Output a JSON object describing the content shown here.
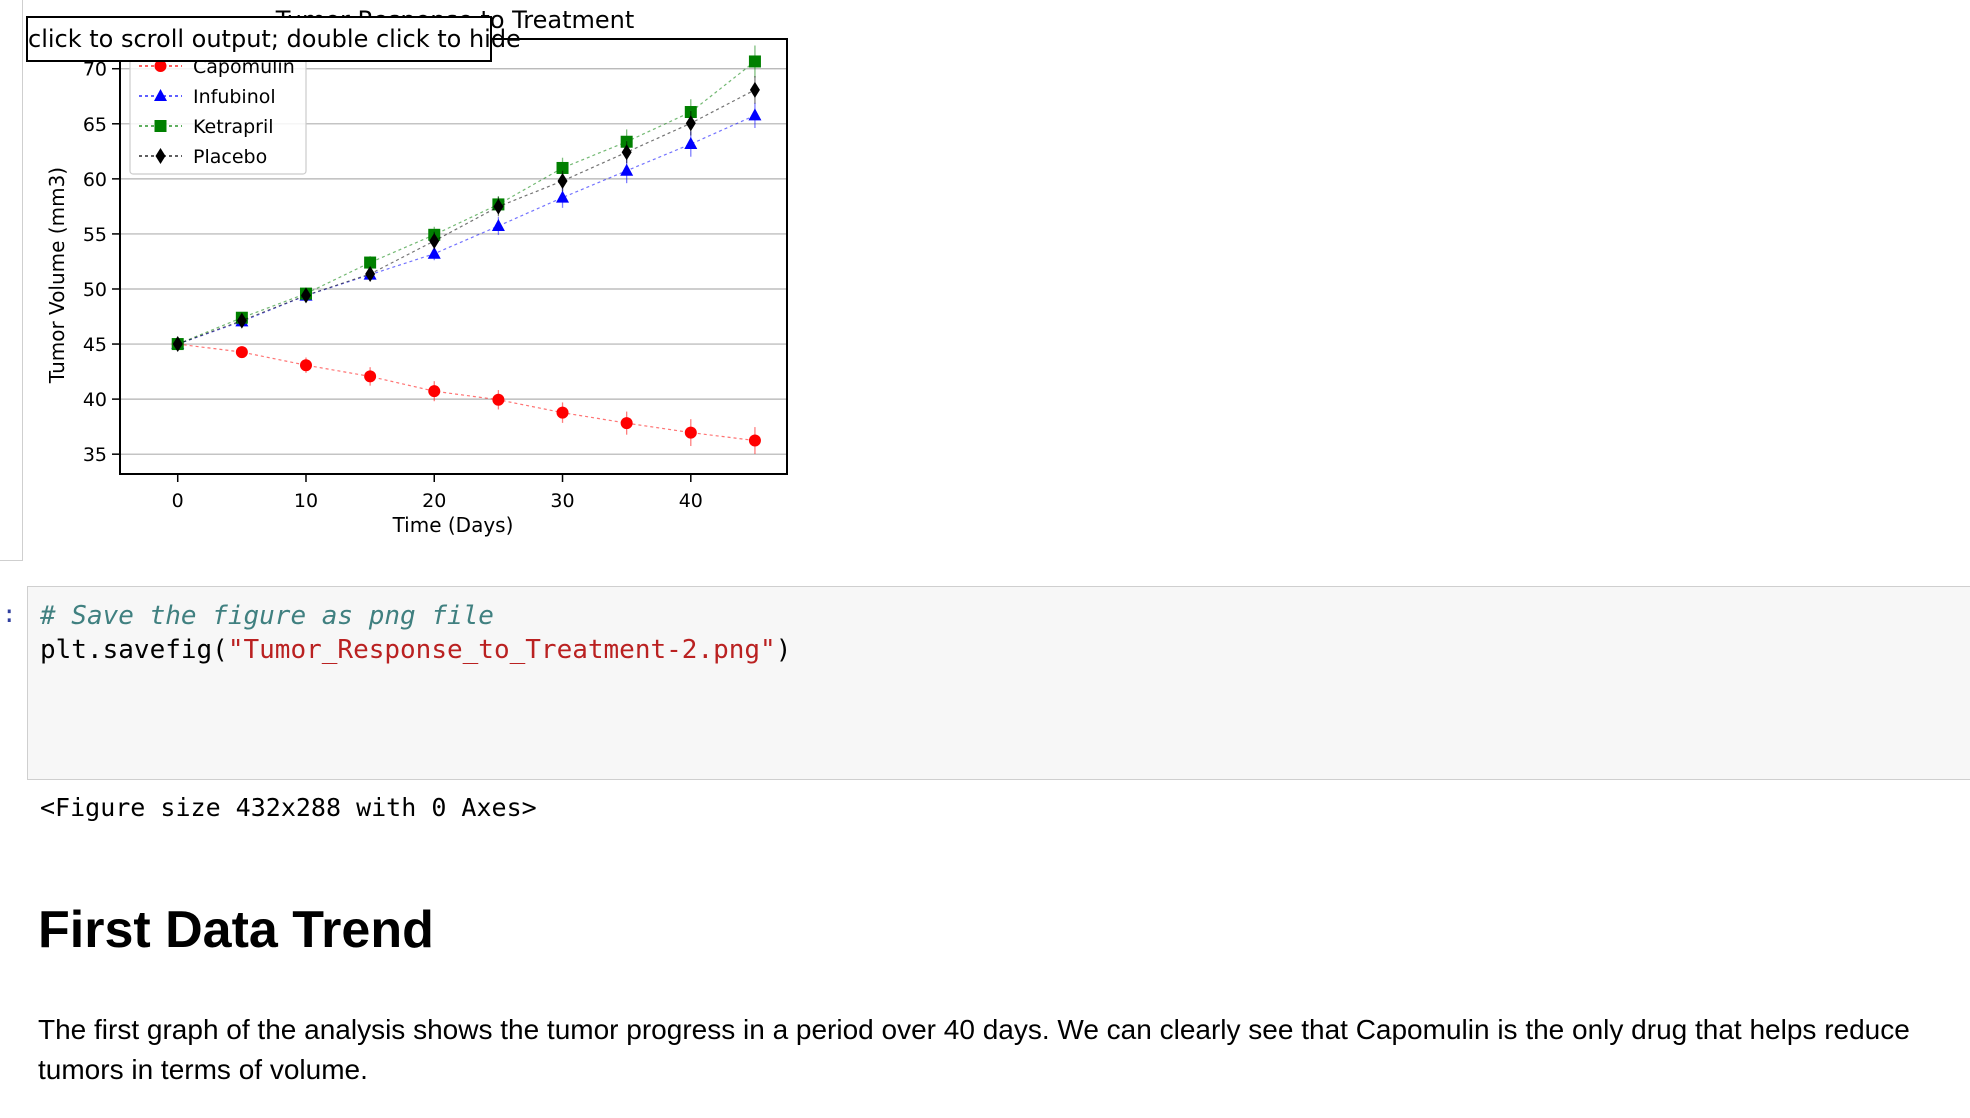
{
  "output": {
    "tooltip": "click to scroll output; double click to hide"
  },
  "chart_data": {
    "type": "line",
    "title": "Tumor Response to Treatment",
    "xlabel": "Time (Days)",
    "ylabel": "Tumor Volume (mm3)",
    "xlim": [
      -4.5,
      47.5
    ],
    "ylim": [
      33.2,
      72.7
    ],
    "xticks": [
      0,
      10,
      20,
      30,
      40
    ],
    "yticks": [
      35,
      40,
      45,
      50,
      55,
      60,
      65,
      70
    ],
    "grid": "horizontal",
    "legend_position": "upper-left",
    "x": [
      0,
      5,
      10,
      15,
      20,
      25,
      30,
      35,
      40,
      45
    ],
    "series": [
      {
        "name": "Capomulin",
        "color": "#ff0000",
        "marker": "circle",
        "values": [
          45.0,
          44.27,
          43.08,
          42.06,
          40.72,
          39.94,
          38.77,
          37.82,
          36.96,
          36.24
        ],
        "errors": [
          0,
          0.45,
          0.7,
          0.84,
          0.91,
          0.88,
          0.93,
          1.05,
          1.22,
          1.22
        ]
      },
      {
        "name": "Infubinol",
        "color": "#0000ff",
        "marker": "triangle",
        "values": [
          45.0,
          47.06,
          49.4,
          51.3,
          53.2,
          55.72,
          58.3,
          60.74,
          63.16,
          65.76
        ],
        "errors": [
          0,
          0.24,
          0.43,
          0.5,
          0.59,
          0.81,
          0.93,
          1.13,
          1.15,
          1.14
        ]
      },
      {
        "name": "Ketrapril",
        "color": "#008000",
        "marker": "square",
        "values": [
          45.0,
          47.39,
          49.58,
          52.4,
          54.92,
          57.68,
          60.99,
          63.37,
          66.07,
          70.66
        ],
        "errors": [
          0,
          0.26,
          0.36,
          0.58,
          0.73,
          0.76,
          0.93,
          1.12,
          1.16,
          1.45
        ]
      },
      {
        "name": "Placebo",
        "color": "#000000",
        "marker": "diamond",
        "values": [
          45.0,
          47.13,
          49.42,
          51.36,
          54.36,
          57.48,
          59.81,
          62.42,
          65.05,
          68.08
        ],
        "errors": [
          0,
          0.22,
          0.4,
          0.61,
          0.84,
          0.88,
          0.93,
          1.0,
          1.11,
          1.25
        ]
      }
    ]
  },
  "code_cell": {
    "prompt": ":",
    "comment": "# Save the figure as png file",
    "code_pre": "plt.savefig(",
    "code_string": "\"Tumor_Response_to_Treatment-2.png\"",
    "code_post": ")"
  },
  "figure_output": "<Figure size 432x288 with 0 Axes>",
  "markdown": {
    "heading": "First Data Trend",
    "paragraph": "The first graph of the analysis shows the tumor progress in a period over 40 days. We can clearly see that Capomulin is the only drug that helps reduce tumors in terms of volume."
  }
}
